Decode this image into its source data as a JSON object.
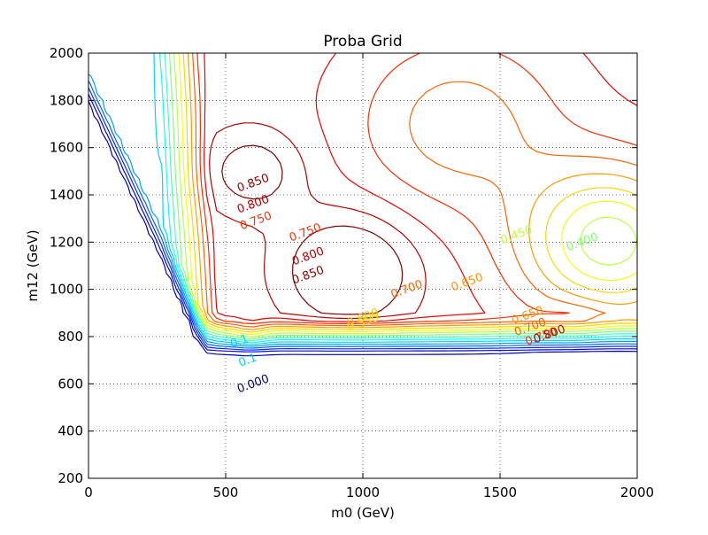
{
  "chart_data": {
    "type": "contour",
    "title": "Proba Grid",
    "xlabel": "m0 (GeV)",
    "ylabel": "m12 (GeV)",
    "xlim": [
      0,
      2000
    ],
    "ylim": [
      200,
      2000
    ],
    "xticks": [
      0,
      500,
      1000,
      1500,
      2000
    ],
    "yticks": [
      200,
      400,
      600,
      800,
      1000,
      1200,
      1400,
      1600,
      1800,
      2000
    ],
    "x_tick_labels": [
      "0",
      "500",
      "1000",
      "1500",
      "2000"
    ],
    "y_tick_labels": [
      "200",
      "400",
      "600",
      "800",
      "1000",
      "1200",
      "1400",
      "1600",
      "1800",
      "2000"
    ],
    "grid": true,
    "grid_style": "dotted",
    "colormap": "jet",
    "levels": [
      0.0,
      0.05,
      0.1,
      0.15,
      0.2,
      0.25,
      0.3,
      0.35,
      0.4,
      0.45,
      0.5,
      0.55,
      0.6,
      0.65,
      0.7,
      0.75,
      0.8,
      0.85,
      0.9
    ],
    "contour_labels": [
      {
        "text": "0.850",
        "x": 600,
        "y": 1450,
        "color": "#8b0000"
      },
      {
        "text": "0.800",
        "x": 600,
        "y": 1360,
        "color": "#b40000"
      },
      {
        "text": "0.750",
        "x": 610,
        "y": 1290,
        "color": "#ff3000"
      },
      {
        "text": "0.750",
        "x": 790,
        "y": 1240,
        "color": "#ff3000"
      },
      {
        "text": "0.800",
        "x": 800,
        "y": 1140,
        "color": "#b40000"
      },
      {
        "text": "0.850",
        "x": 800,
        "y": 1060,
        "color": "#8b0000"
      },
      {
        "text": "0.700",
        "x": 1160,
        "y": 1000,
        "color": "#ff6000"
      },
      {
        "text": "0.650",
        "x": 1380,
        "y": 1030,
        "color": "#ff9000"
      },
      {
        "text": "0.600",
        "x": 1000,
        "y": 880,
        "color": "#ffc000"
      },
      {
        "text": "0.550",
        "x": 1000,
        "y": 860,
        "color": "#ffe000"
      },
      {
        "text": "0.450",
        "x": 1560,
        "y": 1230,
        "color": "#c0ff30"
      },
      {
        "text": "0.400",
        "x": 1800,
        "y": 1200,
        "color": "#80ff70"
      },
      {
        "text": "0.650",
        "x": 1600,
        "y": 890,
        "color": "#ff9000"
      },
      {
        "text": "0.700",
        "x": 1610,
        "y": 840,
        "color": "#ff6000"
      },
      {
        "text": "0.750",
        "x": 1650,
        "y": 800,
        "color": "#ff3000"
      },
      {
        "text": "0.800",
        "x": 1680,
        "y": 810,
        "color": "#b40000"
      },
      {
        "text": "0.000",
        "x": 600,
        "y": 600,
        "color": "#00007f"
      },
      {
        "text": "0.1",
        "x": 550,
        "y": 780,
        "color": "#00d4ff"
      },
      {
        "text": "0.1",
        "x": 580,
        "y": 700,
        "color": "#00d4ff"
      }
    ]
  }
}
